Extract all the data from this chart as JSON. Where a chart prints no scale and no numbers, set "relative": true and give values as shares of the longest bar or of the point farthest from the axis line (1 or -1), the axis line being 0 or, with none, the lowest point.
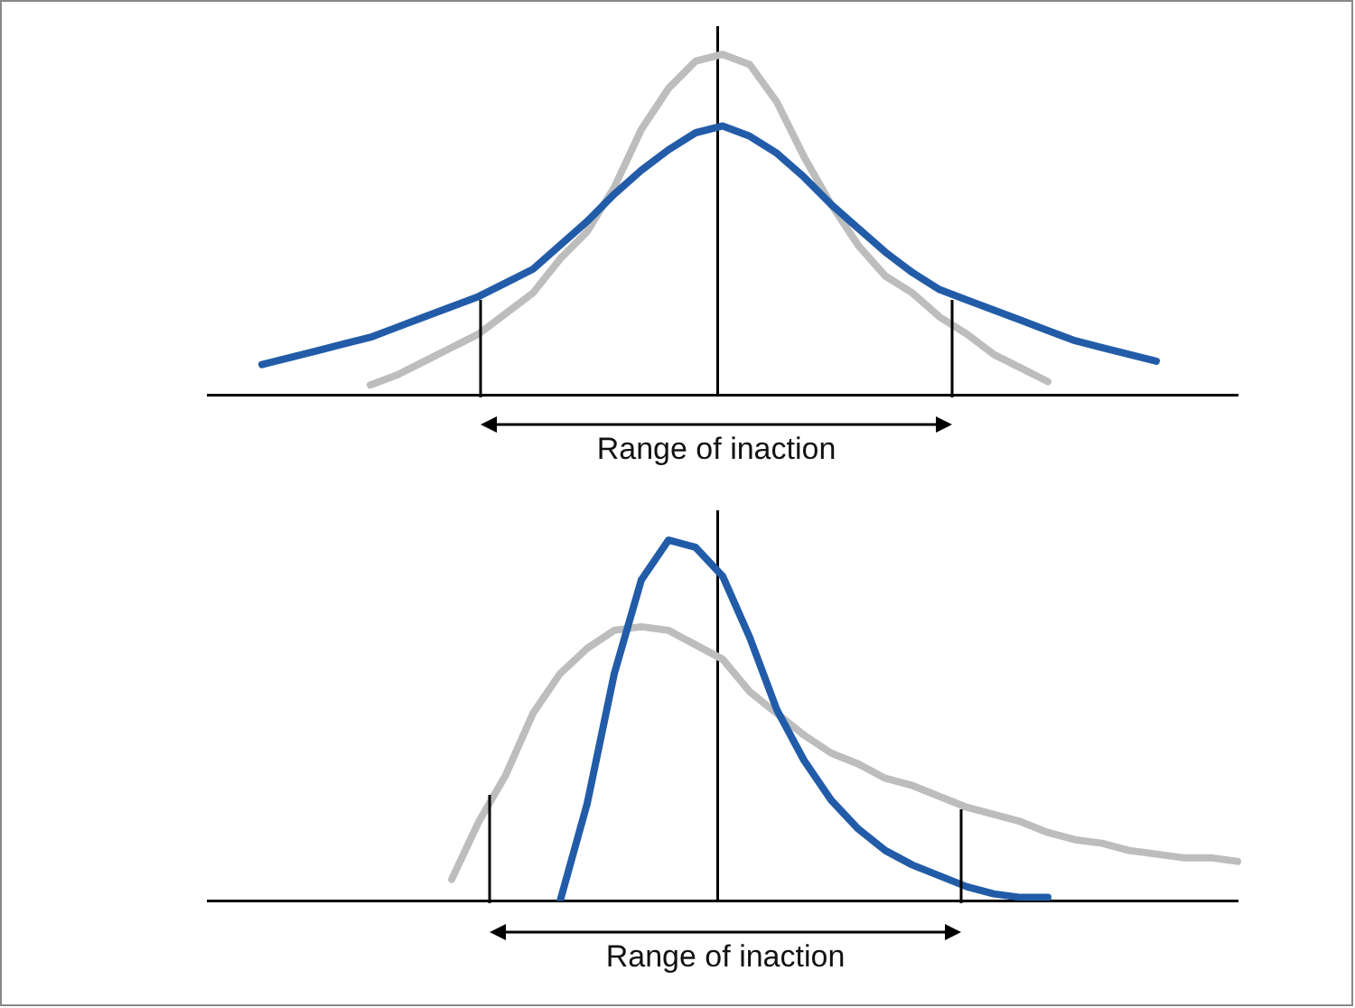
{
  "chart_data": [
    {
      "type": "line",
      "relative": true,
      "legend": false,
      "marker": "none",
      "line_style": "solid",
      "categories": [
        null,
        null,
        null,
        null,
        null,
        null,
        null,
        null,
        null,
        null,
        null,
        null,
        null,
        null,
        null,
        null,
        null,
        null,
        null,
        null,
        null,
        null,
        null,
        null,
        null,
        null,
        null,
        null,
        null,
        null,
        null,
        null,
        null,
        null,
        null,
        null,
        null,
        null,
        null
      ],
      "series": [
        {
          "color": "#225ca8",
          "values": [
            null,
            null,
            0.09,
            0.11,
            0.13,
            0.15,
            0.17,
            0.2,
            0.23,
            0.26,
            0.29,
            0.33,
            0.37,
            0.44,
            0.51,
            0.59,
            0.66,
            0.72,
            0.77,
            0.79,
            0.76,
            0.71,
            0.64,
            0.56,
            0.49,
            0.42,
            0.36,
            0.31,
            0.28,
            0.25,
            0.22,
            0.19,
            0.16,
            0.14,
            0.12,
            0.1,
            null,
            null,
            null
          ]
        },
        {
          "color": "#bdbdbd",
          "values": [
            null,
            null,
            null,
            null,
            null,
            null,
            0.03,
            0.06,
            0.1,
            0.14,
            0.18,
            0.24,
            0.3,
            0.4,
            0.48,
            0.61,
            0.78,
            0.9,
            0.98,
            1,
            0.97,
            0.86,
            0.7,
            0.56,
            0.44,
            0.35,
            0.3,
            0.23,
            0.18,
            0.12,
            0.08,
            0.04,
            null,
            null,
            null,
            null,
            null,
            null,
            null
          ]
        }
      ],
      "annotations": [
        "Range of inaction"
      ]
    },
    {
      "type": "line",
      "relative": true,
      "legend": false,
      "marker": "none",
      "line_style": "solid",
      "categories": [
        null,
        null,
        null,
        null,
        null,
        null,
        null,
        null,
        null,
        null,
        null,
        null,
        null,
        null,
        null,
        null,
        null,
        null,
        null,
        null,
        null,
        null,
        null,
        null,
        null,
        null,
        null,
        null,
        null,
        null,
        null,
        null,
        null,
        null,
        null,
        null,
        null,
        null,
        null
      ],
      "series": [
        {
          "color": "#225ca8",
          "values": [
            null,
            null,
            null,
            null,
            null,
            null,
            null,
            null,
            null,
            null,
            null,
            null,
            null,
            0,
            0.27,
            0.63,
            0.89,
            1,
            0.98,
            0.9,
            0.73,
            0.53,
            0.39,
            0.28,
            0.2,
            0.14,
            0.1,
            0.07,
            0.04,
            0.02,
            0.01,
            0.01,
            null,
            null,
            null,
            null,
            null,
            null,
            null
          ]
        },
        {
          "color": "#bdbdbd",
          "values": [
            null,
            null,
            null,
            null,
            null,
            null,
            null,
            null,
            null,
            0.06,
            0.22,
            0.35,
            0.52,
            0.63,
            0.7,
            0.75,
            0.76,
            0.75,
            0.71,
            0.67,
            0.58,
            0.52,
            0.46,
            0.41,
            0.38,
            0.34,
            0.32,
            0.29,
            0.26,
            0.24,
            0.22,
            0.19,
            0.17,
            0.16,
            0.14,
            0.13,
            0.12,
            0.12,
            0.11
          ]
        }
      ],
      "annotations": [
        "Range of inaction"
      ]
    }
  ]
}
